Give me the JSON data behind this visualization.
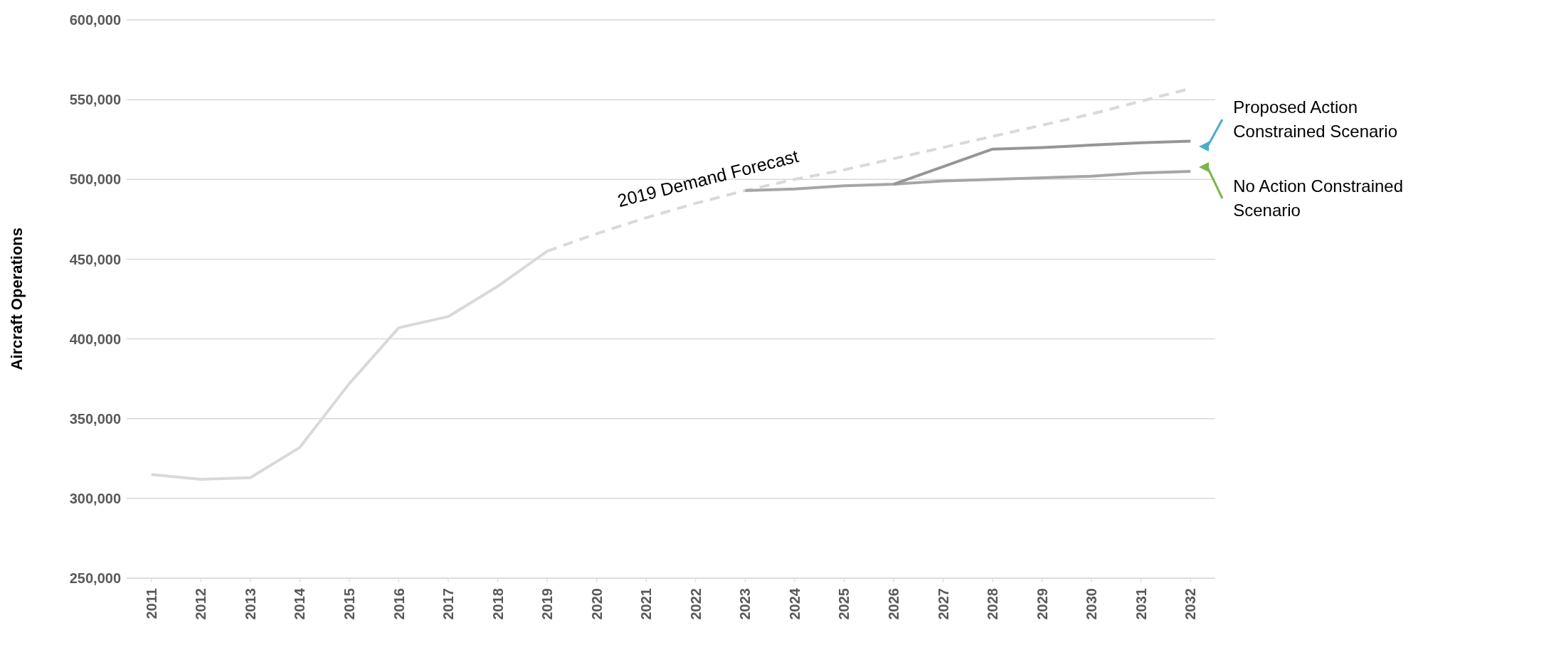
{
  "chart_data": {
    "type": "line",
    "ylabel": "Aircraft Operations",
    "categories": [
      "2011",
      "2012",
      "2013",
      "2014",
      "2015",
      "2016",
      "2017",
      "2018",
      "2019",
      "2020",
      "2021",
      "2022",
      "2023",
      "2024",
      "2025",
      "2026",
      "2027",
      "2028",
      "2029",
      "2030",
      "2031",
      "2032"
    ],
    "series": [
      {
        "color": "#d9d9d9",
        "line_style": "solid",
        "values": [
          315000,
          312000,
          313000,
          332000,
          372000,
          407000,
          414000,
          433000,
          455000,
          null,
          null,
          null,
          null,
          null,
          null,
          null,
          null,
          null,
          null,
          null,
          null,
          null
        ]
      },
      {
        "name": "2019 Demand Forecast",
        "color": "#d9d9d9",
        "line_style": "dashed",
        "values": [
          null,
          null,
          null,
          null,
          null,
          null,
          null,
          null,
          455000,
          466000,
          476000,
          485000,
          493000,
          500000,
          506000,
          513000,
          520000,
          527000,
          534000,
          541000,
          549000,
          557000
        ]
      },
      {
        "name": "No Action Constrained Scenario",
        "color": "#a6a6a6",
        "line_style": "solid",
        "values": [
          null,
          null,
          null,
          null,
          null,
          null,
          null,
          null,
          null,
          null,
          null,
          null,
          493000,
          494000,
          496000,
          497000,
          499000,
          500000,
          501000,
          502000,
          504000,
          505000
        ]
      },
      {
        "name": "Proposed Action Constrained Scenario",
        "color": "#969696",
        "line_style": "solid",
        "values": [
          null,
          null,
          null,
          null,
          null,
          null,
          null,
          null,
          null,
          null,
          null,
          null,
          null,
          null,
          null,
          497000,
          508000,
          519000,
          520000,
          521500,
          523000,
          524000
        ]
      }
    ],
    "ylim": [
      250000,
      600000
    ],
    "yticks": [
      {
        "value": 250000,
        "label": "250,000"
      },
      {
        "value": 300000,
        "label": "300,000"
      },
      {
        "value": 350000,
        "label": "350,000"
      },
      {
        "value": 400000,
        "label": "400,000"
      },
      {
        "value": 450000,
        "label": "450,000"
      },
      {
        "value": 500000,
        "label": "500,000"
      },
      {
        "value": 550000,
        "label": "550,000"
      },
      {
        "value": 600000,
        "label": "600,000"
      }
    ],
    "grid": "y",
    "legend": false
  }
}
